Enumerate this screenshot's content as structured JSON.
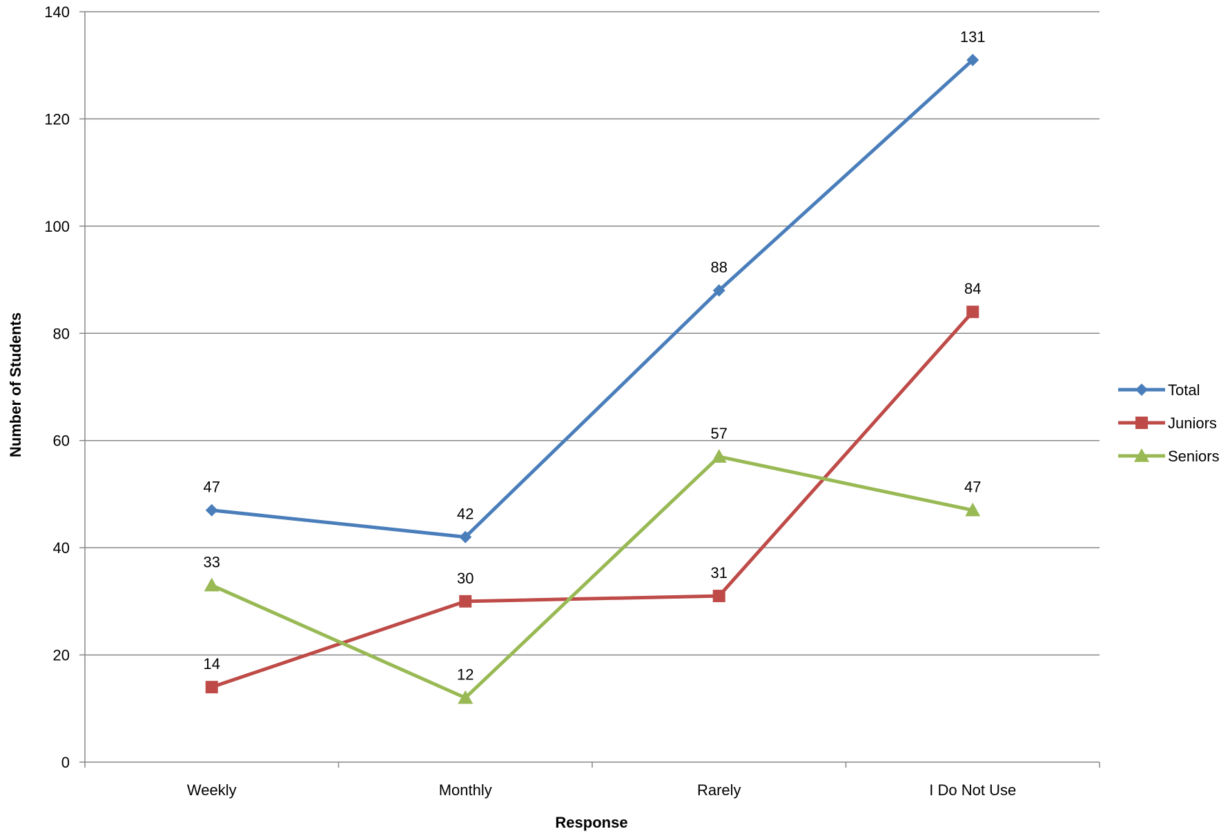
{
  "chart_data": {
    "type": "line",
    "categories": [
      "Weekly",
      "Monthly",
      "Rarely",
      "I Do Not Use"
    ],
    "series": [
      {
        "name": "Total",
        "values": [
          47,
          42,
          88,
          131
        ],
        "color": "#4a7ebb",
        "marker": "diamond"
      },
      {
        "name": "Juniors",
        "values": [
          14,
          30,
          31,
          84
        ],
        "color": "#be4b48",
        "marker": "square"
      },
      {
        "name": "Seniors",
        "values": [
          33,
          12,
          57,
          47
        ],
        "color": "#98b954",
        "marker": "triangle"
      }
    ],
    "title": "",
    "xlabel": "Response",
    "ylabel": "Number of Students",
    "ylim": [
      0,
      140
    ],
    "yticks": [
      0,
      20,
      40,
      60,
      80,
      100,
      120,
      140
    ],
    "grid": true,
    "legend_position": "right",
    "data_labels": true
  }
}
